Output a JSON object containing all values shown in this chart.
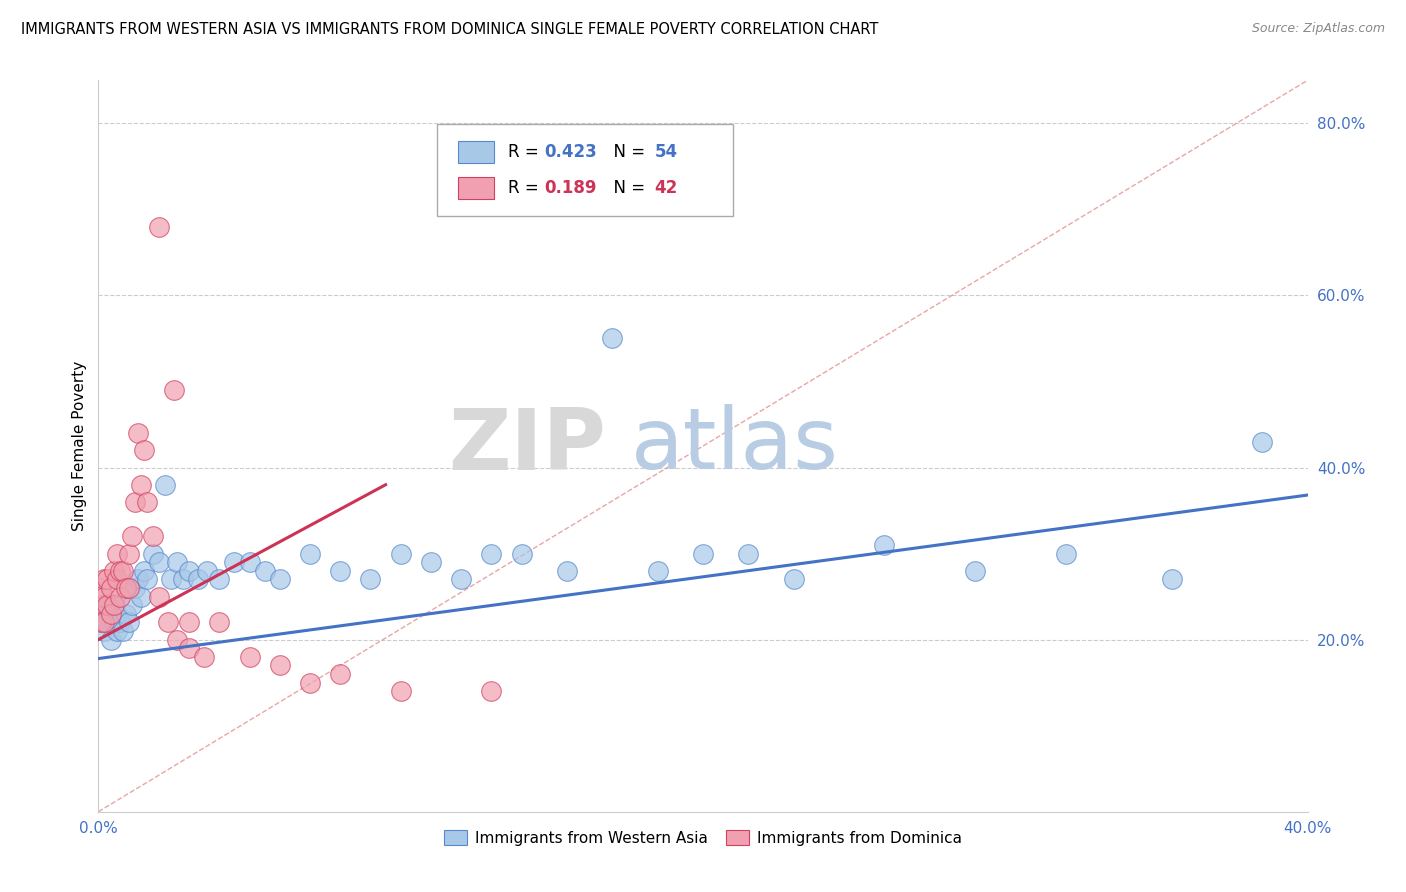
{
  "title": "IMMIGRANTS FROM WESTERN ASIA VS IMMIGRANTS FROM DOMINICA SINGLE FEMALE POVERTY CORRELATION CHART",
  "source": "Source: ZipAtlas.com",
  "ylabel": "Single Female Poverty",
  "xlim": [
    0.0,
    0.4
  ],
  "ylim": [
    0.0,
    0.85
  ],
  "xtick_vals": [
    0.0,
    0.05,
    0.1,
    0.15,
    0.2,
    0.25,
    0.3,
    0.35,
    0.4
  ],
  "xtick_labels": [
    "0.0%",
    "",
    "",
    "",
    "",
    "",
    "",
    "",
    "40.0%"
  ],
  "ytick_right": [
    0.2,
    0.4,
    0.6,
    0.8
  ],
  "ytick_right_labels": [
    "20.0%",
    "40.0%",
    "60.0%",
    "80.0%"
  ],
  "blue_color": "#a8c8e8",
  "blue_edge_color": "#5588cc",
  "pink_color": "#f0a0b0",
  "pink_edge_color": "#d04060",
  "blue_line_color": "#4472c4",
  "pink_line_color": "#cc3355",
  "ref_line_color": "#e08080",
  "tick_color": "#4472c4",
  "watermark_zip": "ZIP",
  "watermark_atlas": "atlas",
  "blue_R": "0.423",
  "blue_N": "54",
  "pink_R": "0.189",
  "pink_N": "42",
  "blue_trend_x": [
    0.0,
    0.4
  ],
  "blue_trend_y": [
    0.178,
    0.368
  ],
  "pink_trend_x": [
    0.0,
    0.095
  ],
  "pink_trend_y": [
    0.2,
    0.38
  ],
  "blue_x": [
    0.001,
    0.002,
    0.002,
    0.003,
    0.003,
    0.004,
    0.004,
    0.005,
    0.005,
    0.006,
    0.006,
    0.007,
    0.008,
    0.009,
    0.01,
    0.011,
    0.012,
    0.013,
    0.014,
    0.015,
    0.016,
    0.018,
    0.02,
    0.022,
    0.024,
    0.026,
    0.028,
    0.03,
    0.033,
    0.036,
    0.04,
    0.045,
    0.05,
    0.055,
    0.06,
    0.07,
    0.08,
    0.09,
    0.1,
    0.11,
    0.12,
    0.13,
    0.14,
    0.155,
    0.17,
    0.185,
    0.2,
    0.215,
    0.23,
    0.26,
    0.29,
    0.32,
    0.355,
    0.385
  ],
  "blue_y": [
    0.22,
    0.24,
    0.21,
    0.22,
    0.24,
    0.2,
    0.23,
    0.22,
    0.24,
    0.21,
    0.23,
    0.22,
    0.21,
    0.23,
    0.22,
    0.24,
    0.26,
    0.27,
    0.25,
    0.28,
    0.27,
    0.3,
    0.29,
    0.38,
    0.27,
    0.29,
    0.27,
    0.28,
    0.27,
    0.28,
    0.27,
    0.29,
    0.29,
    0.28,
    0.27,
    0.3,
    0.28,
    0.27,
    0.3,
    0.29,
    0.27,
    0.3,
    0.3,
    0.28,
    0.55,
    0.28,
    0.3,
    0.3,
    0.27,
    0.31,
    0.28,
    0.3,
    0.27,
    0.43
  ],
  "pink_x": [
    0.001,
    0.001,
    0.001,
    0.002,
    0.002,
    0.002,
    0.003,
    0.003,
    0.004,
    0.004,
    0.005,
    0.005,
    0.006,
    0.006,
    0.007,
    0.007,
    0.008,
    0.009,
    0.01,
    0.01,
    0.011,
    0.012,
    0.013,
    0.014,
    0.015,
    0.016,
    0.018,
    0.02,
    0.023,
    0.026,
    0.03,
    0.03,
    0.035,
    0.04,
    0.05,
    0.06,
    0.07,
    0.08,
    0.1,
    0.13,
    0.025,
    0.02
  ],
  "pink_y": [
    0.24,
    0.26,
    0.22,
    0.25,
    0.22,
    0.27,
    0.24,
    0.27,
    0.26,
    0.23,
    0.28,
    0.24,
    0.27,
    0.3,
    0.28,
    0.25,
    0.28,
    0.26,
    0.3,
    0.26,
    0.32,
    0.36,
    0.44,
    0.38,
    0.42,
    0.36,
    0.32,
    0.25,
    0.22,
    0.2,
    0.19,
    0.22,
    0.18,
    0.22,
    0.18,
    0.17,
    0.15,
    0.16,
    0.14,
    0.14,
    0.49,
    0.68
  ]
}
